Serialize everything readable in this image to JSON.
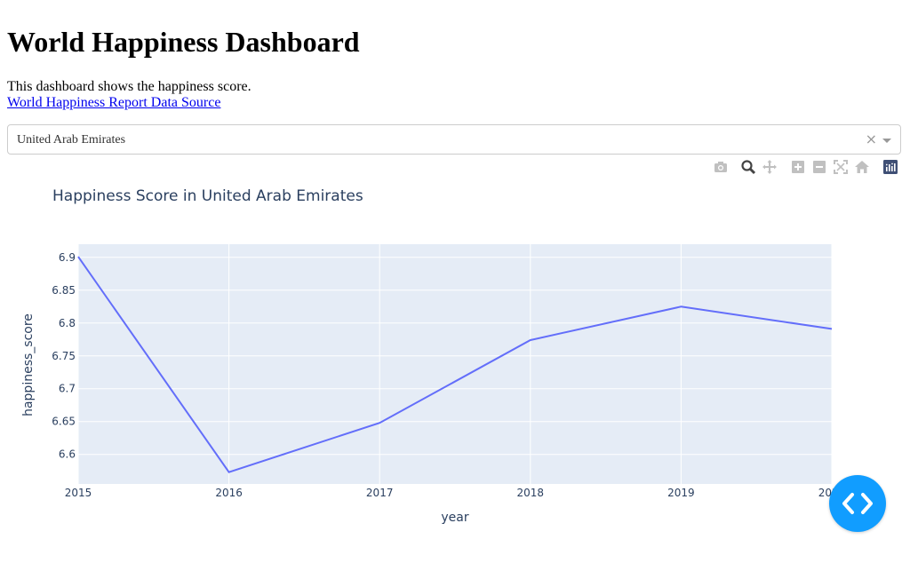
{
  "page": {
    "title": "World Happiness Dashboard",
    "description": "This dashboard shows the happiness score.",
    "source_link": "World Happiness Report Data Source"
  },
  "dropdown": {
    "selected": "United Arab Emirates",
    "clear_icon": "×"
  },
  "modebar": {
    "icons": [
      "camera-icon",
      "zoom-icon",
      "pan-icon",
      "zoom-in-icon",
      "zoom-out-icon",
      "autoscale-icon",
      "reset-axes-icon",
      "plotly-logo-icon"
    ]
  },
  "colors": {
    "plot_bg": "#e5ecf6",
    "line": "#636efa",
    "fab": "#119dff",
    "text": "#2a3f5f"
  },
  "chart_data": {
    "type": "line",
    "title": "Happiness Score in United Arab Emirates",
    "xlabel": "year",
    "ylabel": "happiness_score",
    "x": [
      2015,
      2016,
      2017,
      2018,
      2019,
      2020
    ],
    "y": [
      6.901,
      6.573,
      6.648,
      6.774,
      6.825,
      6.791
    ],
    "xlim": [
      2015,
      2020
    ],
    "ylim": [
      6.555,
      6.92
    ],
    "x_ticks": [
      "2015",
      "2016",
      "2017",
      "2018",
      "2019",
      "2020"
    ],
    "y_ticks": [
      "6.6",
      "6.65",
      "6.7",
      "6.75",
      "6.8",
      "6.85",
      "6.9"
    ],
    "grid": true
  }
}
